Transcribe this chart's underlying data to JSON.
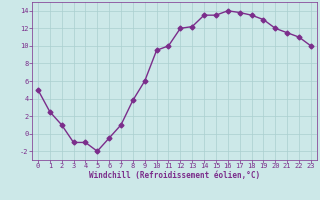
{
  "x": [
    0,
    1,
    2,
    3,
    4,
    5,
    6,
    7,
    8,
    9,
    10,
    11,
    12,
    13,
    14,
    15,
    16,
    17,
    18,
    19,
    20,
    21,
    22,
    23
  ],
  "y": [
    5,
    2.5,
    1,
    -1,
    -1,
    -2,
    -0.5,
    1,
    3.8,
    6,
    9.5,
    10,
    12,
    12.2,
    13.5,
    13.5,
    14,
    13.8,
    13.5,
    13,
    12,
    11.5,
    11,
    10
  ],
  "line_color": "#7B2D8B",
  "marker": "D",
  "marker_size": 2.5,
  "bg_color": "#cce8e8",
  "grid_color": "#aacfcf",
  "xlabel": "Windchill (Refroidissement éolien,°C)",
  "ylim": [
    -3,
    15
  ],
  "xlim": [
    -0.5,
    23.5
  ],
  "yticks": [
    -2,
    0,
    2,
    4,
    6,
    8,
    10,
    12,
    14
  ],
  "xticks": [
    0,
    1,
    2,
    3,
    4,
    5,
    6,
    7,
    8,
    9,
    10,
    11,
    12,
    13,
    14,
    15,
    16,
    17,
    18,
    19,
    20,
    21,
    22,
    23
  ],
  "tick_color": "#7B2D8B",
  "label_fontsize": 5.5,
  "tick_fontsize": 5.0,
  "linewidth": 1.0
}
